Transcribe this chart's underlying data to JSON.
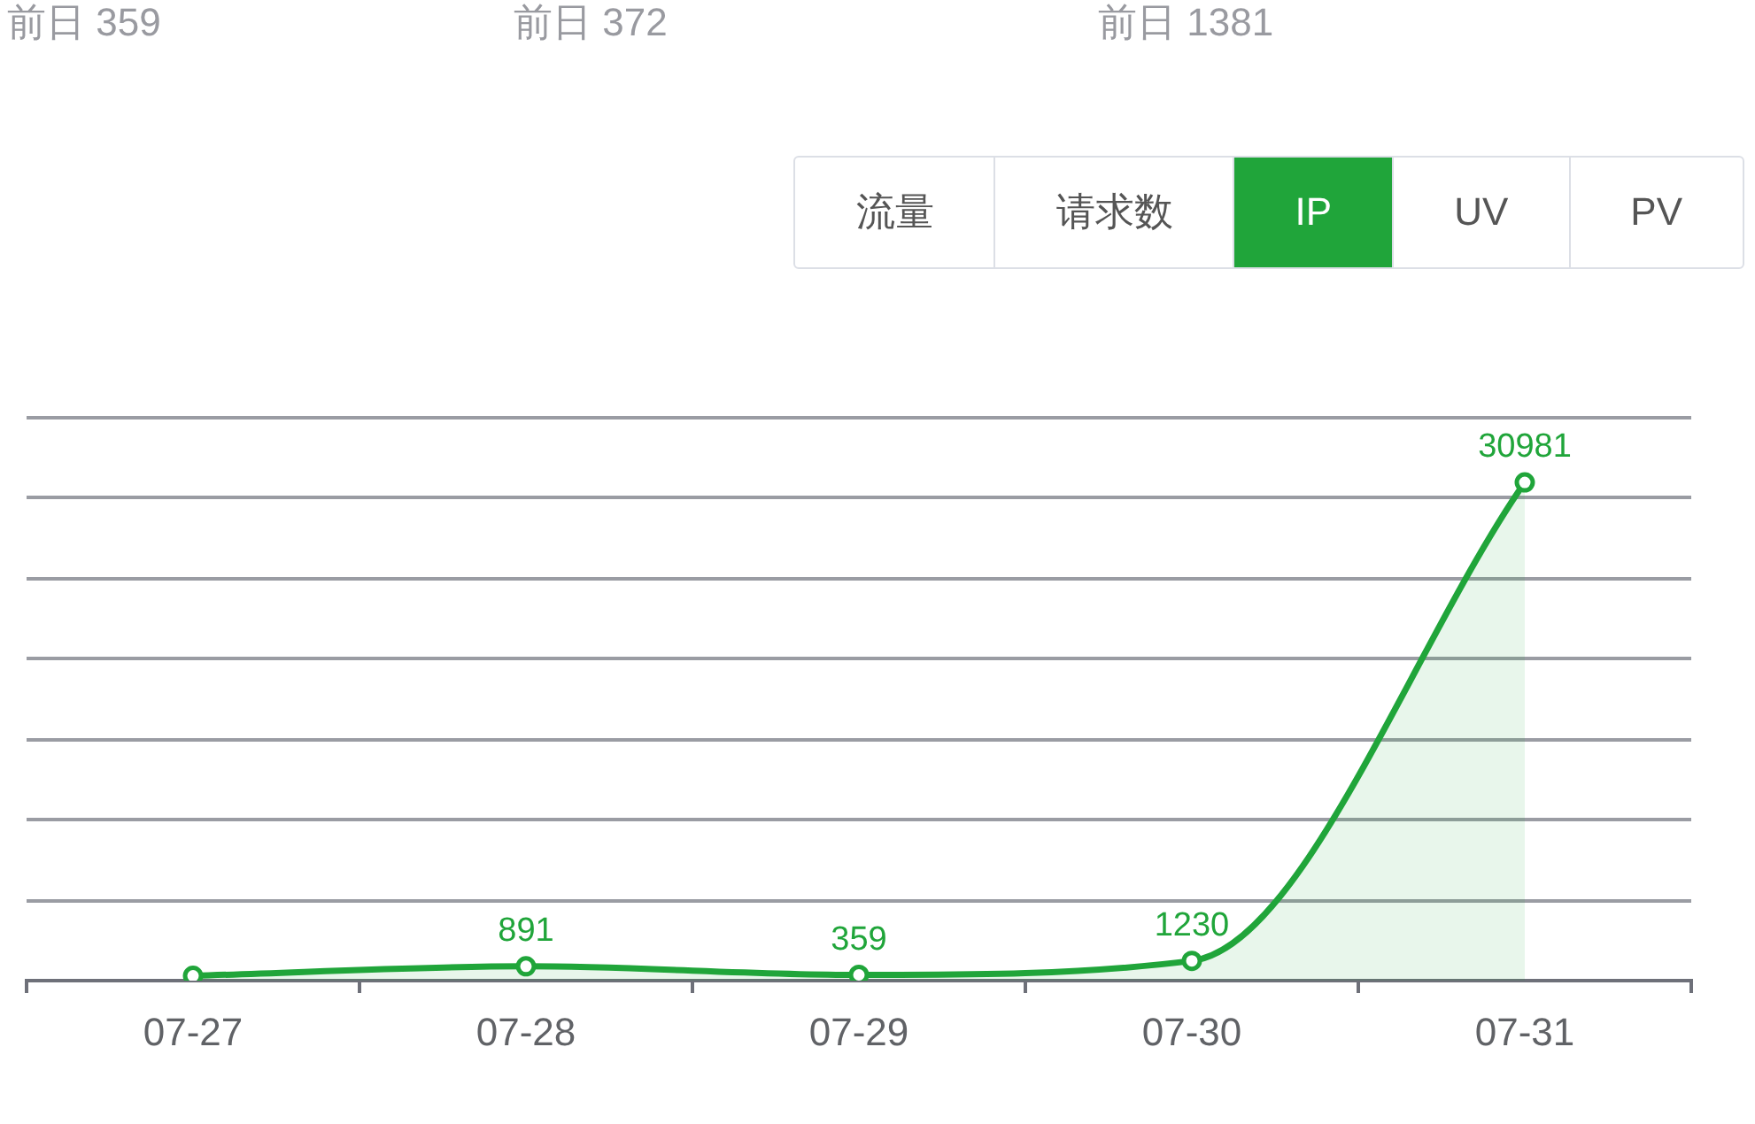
{
  "chart_data": {
    "type": "area",
    "categories": [
      "07-27",
      "07-28",
      "07-29",
      "07-30",
      "07-31"
    ],
    "values": [
      300,
      891,
      359,
      1230,
      30981
    ],
    "value_labels": [
      null,
      "891",
      "359",
      "1230",
      "30981"
    ],
    "color": "#20a53a",
    "ylim": [
      0,
      35000
    ],
    "yticks": [
      0,
      5000,
      10000,
      15000,
      20000,
      25000,
      30000,
      35000
    ],
    "grid": "y",
    "tick_labels": "x",
    "marker": "circle",
    "annotations": [
      "前日 359",
      "前日 372",
      "前日 1381",
      "流量",
      "请求数",
      "IP",
      "UV",
      "PV"
    ]
  }
}
